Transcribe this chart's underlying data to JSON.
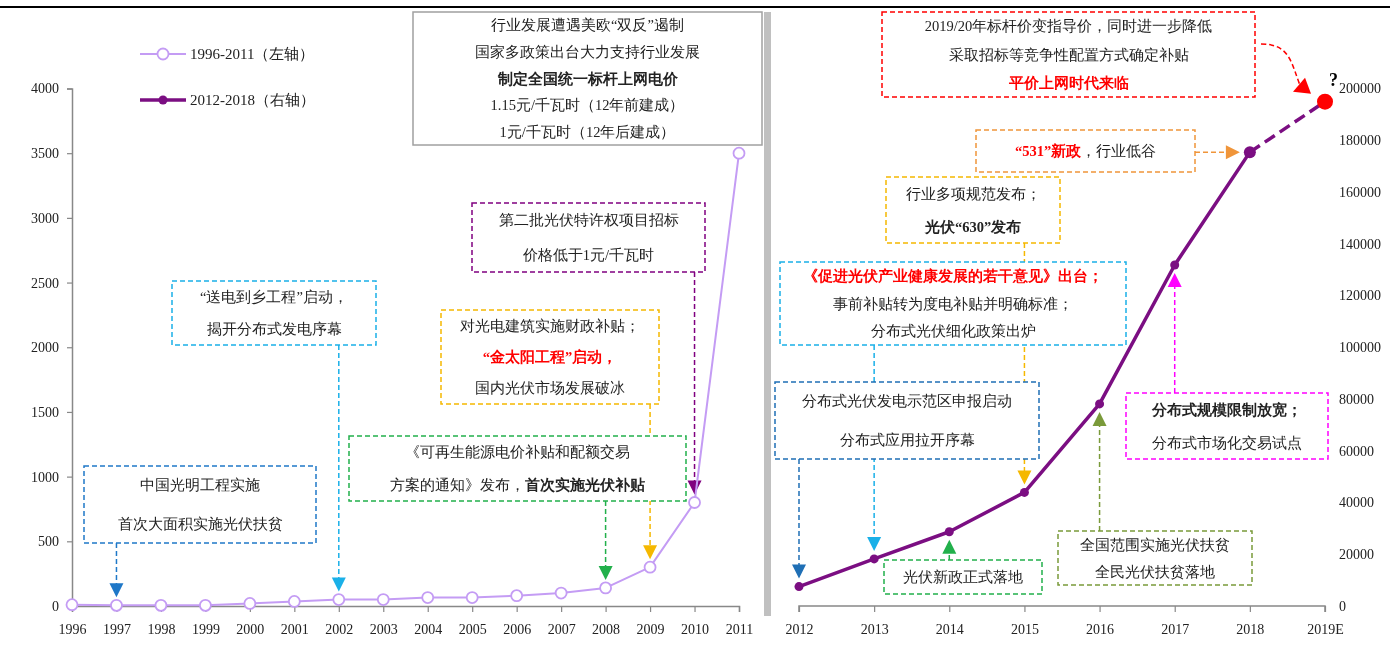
{
  "chart_data": [
    {
      "type": "line",
      "categories": [
        "1996",
        "1997",
        "1998",
        "1999",
        "2000",
        "2001",
        "2002",
        "2003",
        "2004",
        "2005",
        "2006",
        "2007",
        "2008",
        "2009",
        "2010",
        "2011"
      ],
      "ylim": [
        0,
        4000
      ],
      "yticks": [
        0,
        500,
        1000,
        1500,
        2000,
        2500,
        3000,
        3500,
        4000
      ],
      "legend": "top left",
      "marker": "circle",
      "series": [
        {
          "name": "1996-2011（左轴）",
          "color": "#c49cf4",
          "values": [
            10,
            5,
            5,
            5,
            20,
            35,
            50,
            50,
            65,
            65,
            80,
            100,
            140,
            300,
            800,
            3500
          ]
        }
      ],
      "annotations": [
        "中国光明工程实施",
        "首次大面积实施光伏扶贫",
        "“送电到乡工程”启动，",
        "揭开分布式发电序幕",
        "《可再生能源电价补贴和配额交易",
        "方案的通知》发布，",
        "首次实施光伏补贴",
        "对光电建筑实施财政补贴；",
        "“金太阳工程”启动，",
        "国内光伏市场发展破冰",
        "第二批光伏特许权项目招标",
        "价格低于1元/千瓦时",
        "行业发展遭遇美欧“双反”遏制",
        "国家多政策出台大力支持行业发展",
        "制定全国统一标杆上网电价",
        "1.15元/千瓦时（12年前建成）",
        "1元/千瓦时（12年后建成）"
      ]
    },
    {
      "type": "line",
      "categories": [
        "2012",
        "2013",
        "2014",
        "2015",
        "2016",
        "2017",
        "2018",
        "2019E"
      ],
      "y2lim": [
        0,
        200000
      ],
      "y2ticks": [
        0,
        20000,
        40000,
        60000,
        80000,
        100000,
        120000,
        140000,
        160000,
        180000,
        200000
      ],
      "legend": "top left",
      "marker": "circle",
      "series": [
        {
          "name": "2012-2018（右轴）",
          "color": "#7b0e82",
          "axis": "y2",
          "values": [
            7500,
            18200,
            28700,
            43900,
            78100,
            131800,
            175400,
            null
          ]
        },
        {
          "color": "#7b0e82",
          "colors": [
            null,
            null,
            null,
            null,
            null,
            null,
            "#7b0e82",
            "#ff0000"
          ],
          "axis": "y2",
          "line_style": "dashed",
          "values": [
            null,
            null,
            null,
            null,
            null,
            null,
            175400,
            194900
          ]
        }
      ],
      "annotations": [
        "分布式光伏发电示范区申报启动",
        "分布式应用拉开序幕",
        "《促进光伏产业健康发展的若干意见》出台；",
        "事前补贴转为度电补贴并明确标准；",
        "分布式光伏细化政策出炉",
        "光伏新政正式落地",
        "行业多项规范发布；",
        "光伏“630”发布",
        "全国范围实施光伏扶贫",
        "全民光伏扶贫落地",
        "分布式规模限制放宽；",
        "分布式市场化交易试点",
        "“531”新政",
        "，行业低谷",
        "2019/20年标杆价变指导价，同时进一步降低",
        "采取招标等竞争性配置方式确定补贴",
        "平价上网时代来临",
        "?"
      ]
    }
  ]
}
